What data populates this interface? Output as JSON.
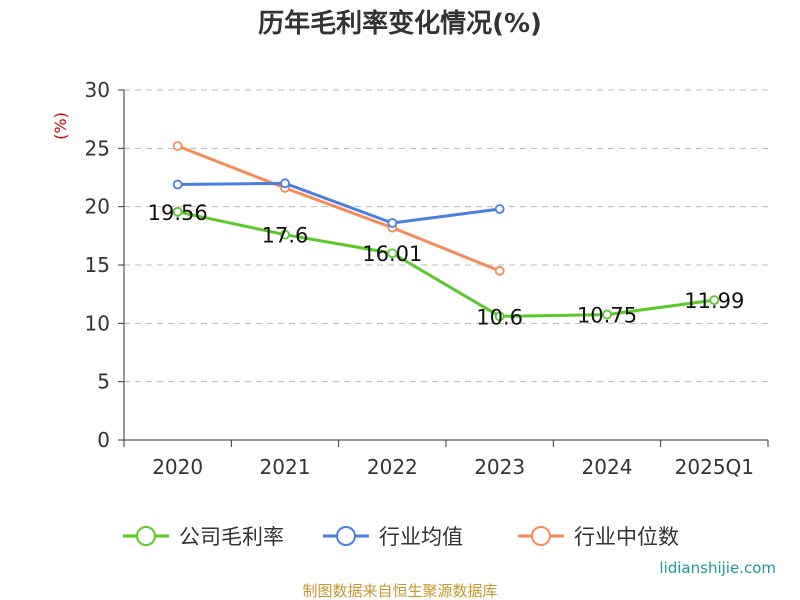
{
  "chart_data": {
    "type": "line",
    "title": "历年毛利率变化情况(%)",
    "ylabel": "(%)",
    "categories": [
      "2020",
      "2021",
      "2022",
      "2023",
      "2024",
      "2025Q1"
    ],
    "ylim": [
      0,
      30
    ],
    "yticks": [
      0,
      5,
      10,
      15,
      20,
      25,
      30
    ],
    "grid": true,
    "legend_position": "bottom",
    "series": [
      {
        "name": "公司毛利率",
        "color": "#5bc92a",
        "values": [
          19.56,
          17.6,
          16.01,
          10.6,
          10.75,
          11.99
        ],
        "labels": [
          "19.56",
          "17.6",
          "16.01",
          "10.6",
          "10.75",
          "11.99"
        ]
      },
      {
        "name": "行业均值",
        "color": "#4a7fdc",
        "values": [
          21.9,
          22.0,
          18.6,
          19.8,
          null,
          null
        ]
      },
      {
        "name": "行业中位数",
        "color": "#f58c57",
        "values": [
          25.2,
          21.6,
          18.2,
          14.5,
          null,
          null
        ]
      }
    ]
  },
  "footer": {
    "source": "制图数据来自恒生聚源数据库",
    "watermark": "lidianshijie.com"
  }
}
